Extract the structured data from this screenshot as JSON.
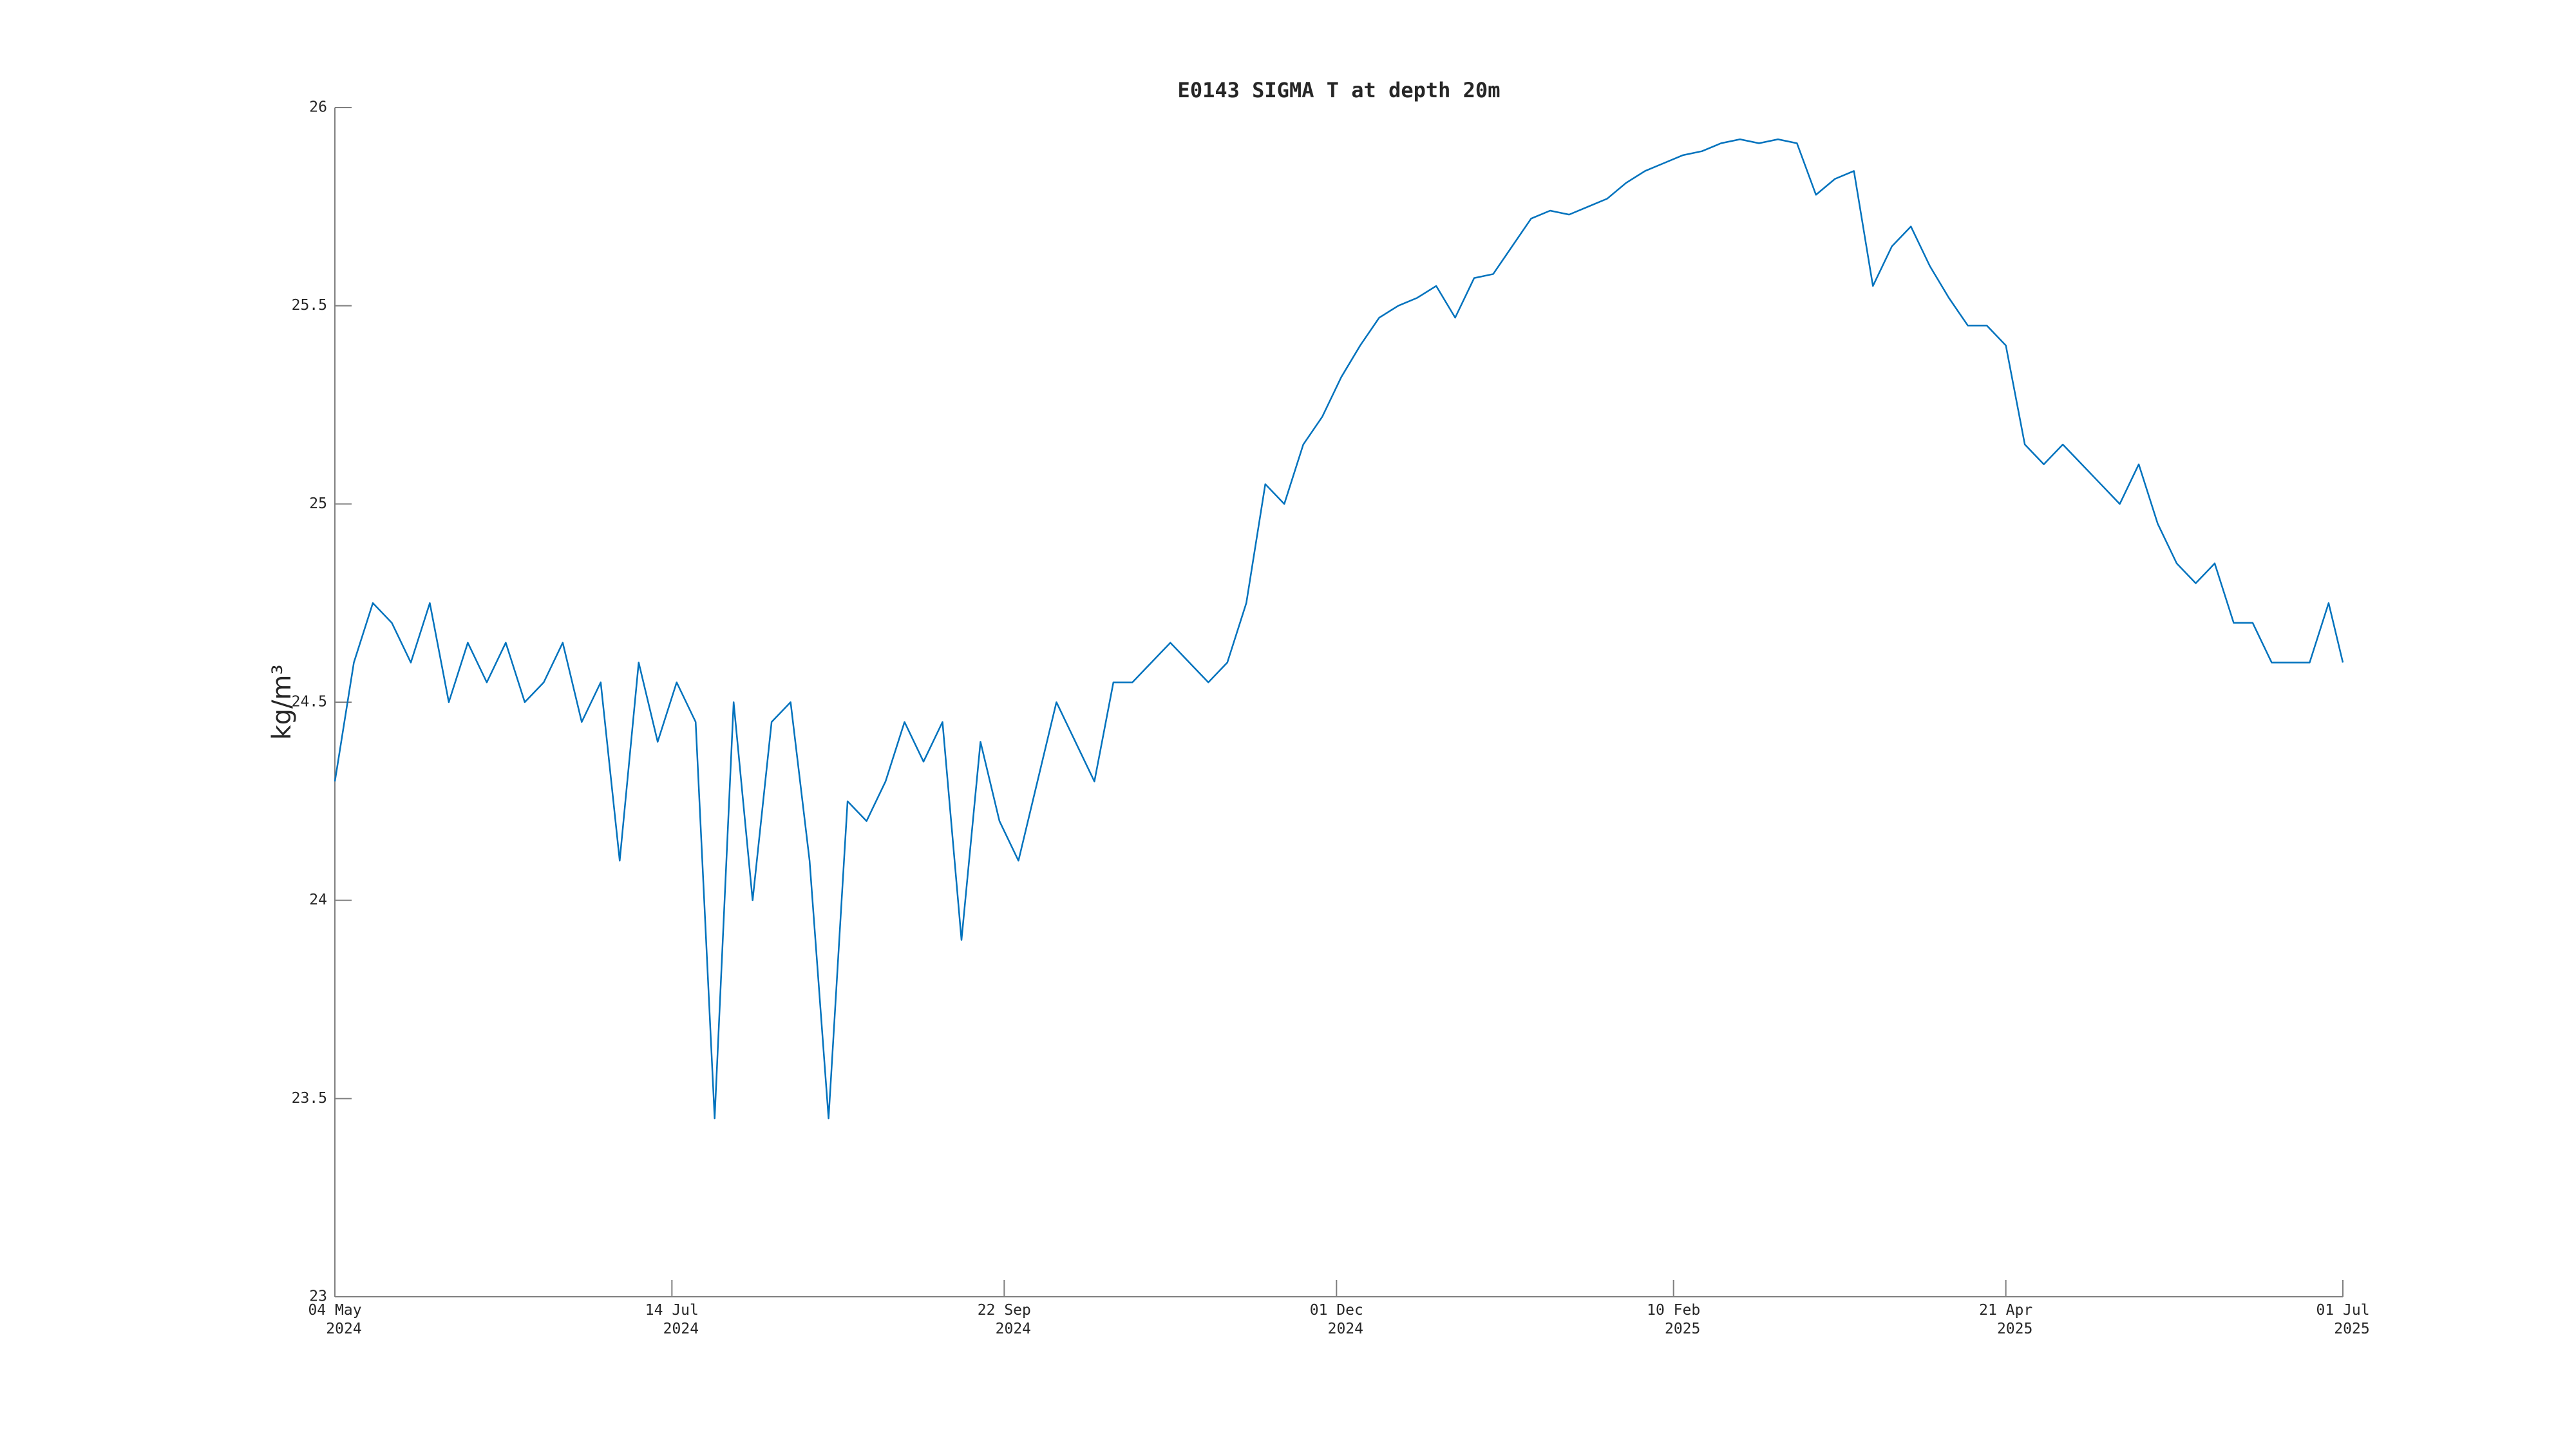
{
  "chart_data": {
    "type": "line",
    "title": "E0143 SIGMA T at depth 20m",
    "y_label": "kg/m³",
    "color": "#0072bd",
    "xlim": [
      "2024-05-04",
      "2025-07-01"
    ],
    "xticks": [
      {
        "value": "2024-05-04",
        "label": "04 May 2024"
      },
      {
        "value": "2024-07-14",
        "label": "14 Jul 2024"
      },
      {
        "value": "2024-09-22",
        "label": "22 Sep 2024"
      },
      {
        "value": "2024-12-01",
        "label": "01 Dec 2024"
      },
      {
        "value": "2025-02-10",
        "label": "10 Feb 2025"
      },
      {
        "value": "2025-04-21",
        "label": "21 Apr 2025"
      },
      {
        "value": "2025-07-01",
        "label": "01 Jul 2025"
      }
    ],
    "ylim": [
      23,
      26
    ],
    "yticks": [
      23,
      23.5,
      24,
      24.5,
      25,
      25.5,
      26
    ],
    "x": [
      "2024-05-04",
      "2024-05-08",
      "2024-05-12",
      "2024-05-16",
      "2024-05-20",
      "2024-05-24",
      "2024-05-28",
      "2024-06-01",
      "2024-06-05",
      "2024-06-09",
      "2024-06-13",
      "2024-06-17",
      "2024-06-21",
      "2024-06-25",
      "2024-06-29",
      "2024-07-03",
      "2024-07-07",
      "2024-07-11",
      "2024-07-15",
      "2024-07-19",
      "2024-07-23",
      "2024-07-27",
      "2024-07-31",
      "2024-08-04",
      "2024-08-08",
      "2024-08-12",
      "2024-08-16",
      "2024-08-20",
      "2024-08-24",
      "2024-08-28",
      "2024-09-01",
      "2024-09-05",
      "2024-09-09",
      "2024-09-13",
      "2024-09-17",
      "2024-09-21",
      "2024-09-25",
      "2024-09-29",
      "2024-10-03",
      "2024-10-07",
      "2024-10-11",
      "2024-10-15",
      "2024-10-19",
      "2024-10-23",
      "2024-10-27",
      "2024-10-31",
      "2024-11-04",
      "2024-11-08",
      "2024-11-12",
      "2024-11-16",
      "2024-11-20",
      "2024-11-24",
      "2024-11-28",
      "2024-12-02",
      "2024-12-06",
      "2024-12-10",
      "2024-12-14",
      "2024-12-18",
      "2024-12-22",
      "2024-12-26",
      "2024-12-30",
      "2025-01-03",
      "2025-01-07",
      "2025-01-11",
      "2025-01-15",
      "2025-01-19",
      "2025-01-23",
      "2025-01-27",
      "2025-01-31",
      "2025-02-04",
      "2025-02-08",
      "2025-02-12",
      "2025-02-16",
      "2025-02-20",
      "2025-02-24",
      "2025-02-28",
      "2025-03-04",
      "2025-03-08",
      "2025-03-12",
      "2025-03-16",
      "2025-03-20",
      "2025-03-24",
      "2025-03-28",
      "2025-04-01",
      "2025-04-05",
      "2025-04-09",
      "2025-04-13",
      "2025-04-17",
      "2025-04-21",
      "2025-04-25",
      "2025-04-29",
      "2025-05-03",
      "2025-05-07",
      "2025-05-11",
      "2025-05-15",
      "2025-05-19",
      "2025-05-23",
      "2025-05-27",
      "2025-05-31",
      "2025-06-04",
      "2025-06-08",
      "2025-06-12",
      "2025-06-16",
      "2025-06-20",
      "2025-06-24",
      "2025-06-28",
      "2025-07-01"
    ],
    "values": [
      24.3,
      24.6,
      24.75,
      24.7,
      24.6,
      24.75,
      24.5,
      24.65,
      24.55,
      24.65,
      24.5,
      24.55,
      24.65,
      24.45,
      24.55,
      24.1,
      24.6,
      24.4,
      24.55,
      24.45,
      23.45,
      24.5,
      24.0,
      24.45,
      24.5,
      24.1,
      23.45,
      24.25,
      24.2,
      24.3,
      24.45,
      24.35,
      24.45,
      23.9,
      24.4,
      24.2,
      24.1,
      24.3,
      24.5,
      24.4,
      24.3,
      24.55,
      24.55,
      24.6,
      24.65,
      24.6,
      24.55,
      24.6,
      24.75,
      25.05,
      25.0,
      25.15,
      25.22,
      25.32,
      25.4,
      25.47,
      25.5,
      25.52,
      25.55,
      25.47,
      25.57,
      25.58,
      25.65,
      25.72,
      25.74,
      25.73,
      25.75,
      25.77,
      25.81,
      25.84,
      25.86,
      25.88,
      25.89,
      25.91,
      25.92,
      25.91,
      25.92,
      25.91,
      25.78,
      25.82,
      25.84,
      25.55,
      25.65,
      25.7,
      25.6,
      25.52,
      25.45,
      25.45,
      25.4,
      25.15,
      25.1,
      25.15,
      25.1,
      25.05,
      25.0,
      25.1,
      24.95,
      24.85,
      24.8,
      24.85,
      24.7,
      24.7,
      24.6,
      24.6,
      24.6,
      24.75,
      24.6
    ]
  }
}
